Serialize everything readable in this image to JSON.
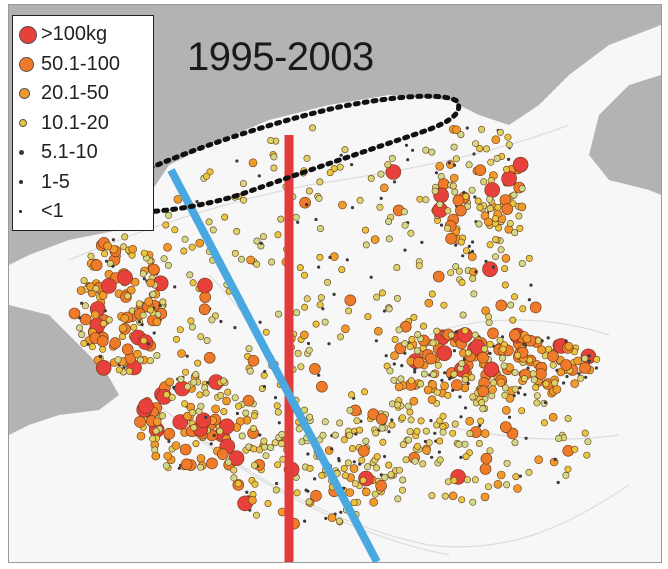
{
  "map": {
    "title": "1995-2003",
    "colors": {
      "land": "#b3b3b3",
      "water": "#f7f7f7",
      "contours": "#dcdcdc",
      "red_line": "#e23b3b",
      "blue_line": "#4aa8e0",
      "dotted_outline": "#111111"
    }
  },
  "legend": {
    "items": [
      {
        "label": ">100kg",
        "color": "#e8403a"
      },
      {
        "label": "50.1-100",
        "color": "#ef7a2a"
      },
      {
        "label": "20.1-50",
        "color": "#f09a2c"
      },
      {
        "label": "10.1-20",
        "color": "#e8c640"
      },
      {
        "label": "5.1-10",
        "color": "#3a3a3a"
      },
      {
        "label": "1-5",
        "color": "#333333"
      },
      {
        "label": "<1",
        "color": "#222222"
      }
    ]
  }
}
